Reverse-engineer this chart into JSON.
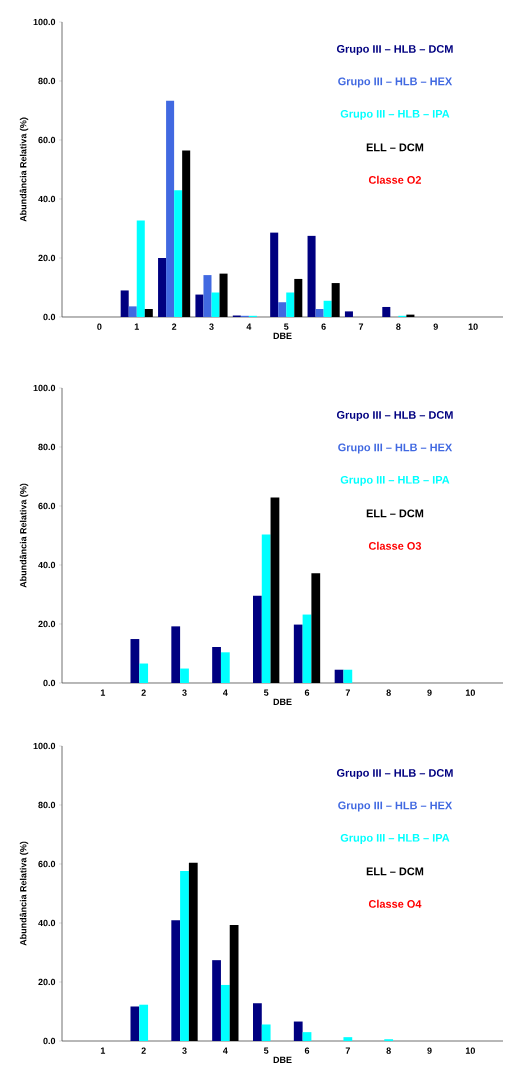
{
  "chart_data": [
    {
      "type": "bar",
      "xlabel": "DBE",
      "ylabel": "Abundância Relativa (%)",
      "categories": [
        "0",
        "1",
        "2",
        "3",
        "4",
        "5",
        "6",
        "7",
        "8",
        "9",
        "10"
      ],
      "series": [
        {
          "name": "Grupo III – HLB – DCM",
          "color": "#000080",
          "values": [
            null,
            9.0,
            20.0,
            7.6,
            0.5,
            28.6,
            27.5,
            1.9,
            3.4,
            null,
            null
          ]
        },
        {
          "name": "Grupo III – HLB – HEX",
          "color": "#4169e1",
          "values": [
            null,
            3.6,
            73.3,
            14.2,
            0.4,
            5.0,
            2.7,
            null,
            null,
            null,
            null
          ]
        },
        {
          "name": "Grupo III – HLB – IPA",
          "color": "#00ffff",
          "values": [
            null,
            32.7,
            43.0,
            8.3,
            0.4,
            8.3,
            5.5,
            null,
            0.4,
            null,
            null
          ]
        },
        {
          "name": "ELL – DCM",
          "color": "#000000",
          "values": [
            null,
            2.7,
            56.4,
            14.7,
            null,
            12.9,
            11.5,
            null,
            0.8,
            null,
            null
          ]
        }
      ],
      "ylim": [
        0,
        100
      ],
      "yticks": [
        {
          "value": 0,
          "label": "0.0"
        },
        {
          "value": 20,
          "label": "20.0"
        },
        {
          "value": 40,
          "label": "40.0"
        },
        {
          "value": 60,
          "label": "60.0"
        },
        {
          "value": 80,
          "label": "80.0"
        },
        {
          "value": 100,
          "label": "100.0"
        }
      ],
      "legend": "top right",
      "annotations": [
        "Classe O2"
      ]
    },
    {
      "type": "bar",
      "xlabel": "DBE",
      "ylabel": "Abundância Relativa (%)",
      "categories": [
        "1",
        "2",
        "3",
        "4",
        "5",
        "6",
        "7",
        "8",
        "9",
        "10"
      ],
      "series": [
        {
          "name": "Grupo III – HLB – DCM",
          "color": "#000080",
          "values": [
            null,
            14.9,
            19.2,
            12.2,
            29.6,
            19.8,
            4.5,
            null,
            null,
            null
          ]
        },
        {
          "name": "Grupo III – HLB – HEX",
          "color": "#4169e1",
          "values": [
            null,
            null,
            null,
            null,
            null,
            null,
            null,
            null,
            null,
            null
          ]
        },
        {
          "name": "Grupo III – HLB – IPA",
          "color": "#00ffff",
          "values": [
            null,
            6.6,
            4.9,
            10.4,
            50.3,
            23.2,
            4.5,
            null,
            null,
            null
          ]
        },
        {
          "name": "ELL – DCM",
          "color": "#000000",
          "values": [
            null,
            null,
            null,
            null,
            62.9,
            37.2,
            null,
            null,
            null,
            null
          ]
        }
      ],
      "ylim": [
        0,
        100
      ],
      "yticks": [
        {
          "value": 0,
          "label": "0.0"
        },
        {
          "value": 20,
          "label": "20.0"
        },
        {
          "value": 40,
          "label": "40.0"
        },
        {
          "value": 60,
          "label": "60.0"
        },
        {
          "value": 80,
          "label": "80.0"
        },
        {
          "value": 100,
          "label": "100.0"
        }
      ],
      "legend": "top right",
      "annotations": [
        "Classe O3"
      ]
    },
    {
      "type": "bar",
      "xlabel": "DBE",
      "ylabel": "Abundância Relativa (%)",
      "categories": [
        "1",
        "2",
        "3",
        "4",
        "5",
        "6",
        "7",
        "8",
        "9",
        "10"
      ],
      "series": [
        {
          "name": "Grupo III – HLB – DCM",
          "color": "#000080",
          "values": [
            null,
            11.7,
            40.9,
            27.4,
            12.8,
            6.6,
            null,
            null,
            null,
            null
          ]
        },
        {
          "name": "Grupo III – HLB – HEX",
          "color": "#4169e1",
          "values": [
            null,
            null,
            null,
            null,
            null,
            null,
            null,
            null,
            null,
            null
          ]
        },
        {
          "name": "Grupo III – HLB – IPA",
          "color": "#00ffff",
          "values": [
            null,
            12.3,
            57.6,
            19.0,
            5.6,
            3.0,
            1.3,
            0.6,
            null,
            null
          ]
        },
        {
          "name": "ELL – DCM",
          "color": "#000000",
          "values": [
            null,
            null,
            60.4,
            39.3,
            null,
            null,
            null,
            null,
            null,
            null
          ]
        }
      ],
      "ylim": [
        0,
        100
      ],
      "yticks": [
        {
          "value": 0,
          "label": "0.0"
        },
        {
          "value": 20,
          "label": "20.0"
        },
        {
          "value": 40,
          "label": "40.0"
        },
        {
          "value": 60,
          "label": "60.0"
        },
        {
          "value": 80,
          "label": "80.0"
        },
        {
          "value": 100,
          "label": "100.0"
        }
      ],
      "legend": "top right",
      "annotations": [
        "Classe O4"
      ]
    }
  ]
}
